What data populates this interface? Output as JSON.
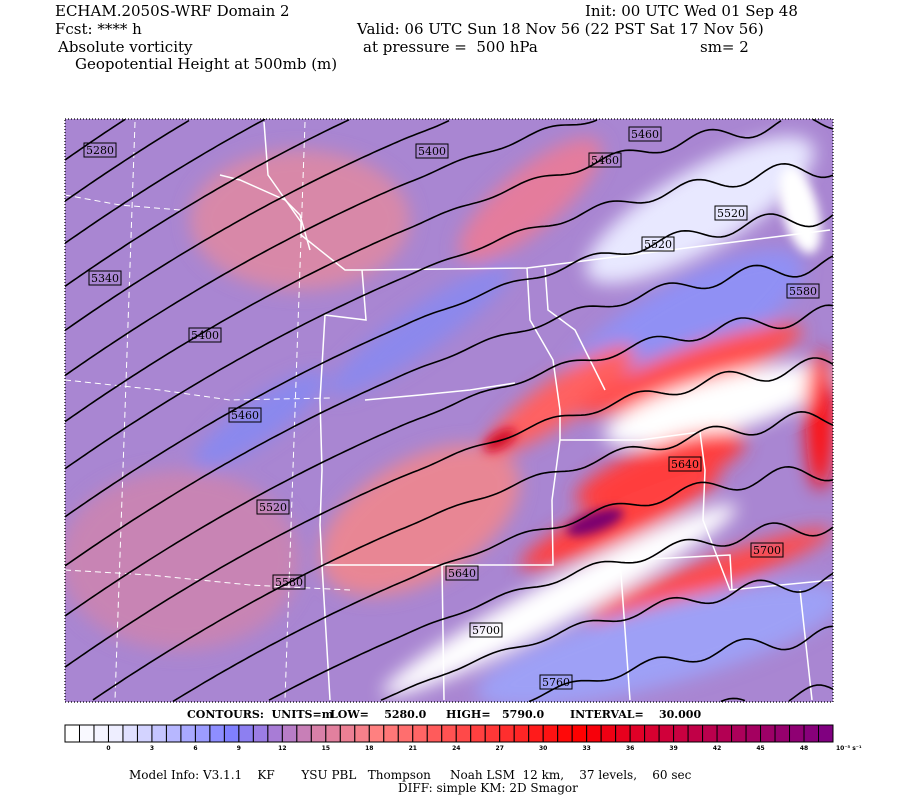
{
  "header": {
    "model": "ECHAM.2050S-WRF Domain 2",
    "init": "Init: 00 UTC Wed 01 Sep 48",
    "fcst": "Fcst: **** h",
    "valid": "Valid: 06 UTC Sun 18 Nov 56 (22 PST Sat 17 Nov 56)",
    "field": "Absolute vorticity",
    "pressure": "at pressure =  500 hPa",
    "smooth": "sm= 2",
    "contour_field": "Geopotential Height at 500mb (m)"
  },
  "contour_info": {
    "units": "CONTOURS:  UNITS=m",
    "low": "LOW=    5280.0",
    "high": "HIGH=   5790.0",
    "interval": "INTERVAL=    30.000"
  },
  "chart_data": {
    "type": "heatmap",
    "title": "Absolute vorticity",
    "overlay": "Geopotential Height at 500mb (m)",
    "contour_range": [
      5280,
      5790
    ],
    "contour_interval": 30,
    "contour_labels": [
      "5280",
      "5340",
      "5400",
      "5460",
      "5520",
      "5580",
      "5640",
      "5700",
      "5760",
      "5400",
      "5460",
      "5460",
      "5520",
      "5520",
      "5580",
      "5640",
      "5700"
    ],
    "colorbar": {
      "tick_labels": [
        "0",
        "3",
        "6",
        "9",
        "12",
        "15",
        "18",
        "21",
        "24",
        "27",
        "30",
        "33",
        "36",
        "39",
        "42",
        "45",
        "48"
      ],
      "units": "10⁻⁵ s⁻¹",
      "stops": [
        {
          "i": 0,
          "c": "#ffffff"
        },
        {
          "i": 3,
          "c": "#eeeeff"
        },
        {
          "i": 11,
          "c": "#8080ff"
        },
        {
          "i": 14,
          "c": "#a87cd6"
        },
        {
          "i": 17,
          "c": "#d880a8"
        },
        {
          "i": 21,
          "c": "#ff8080"
        },
        {
          "i": 35,
          "c": "#ff0000"
        },
        {
          "i": 41,
          "c": "#d0003a"
        },
        {
          "i": 52,
          "c": "#800080"
        }
      ]
    }
  },
  "footer": {
    "line1": "Model Info: V3.1.1    KF       YSU PBL   Thompson     Noah LSM  12 km,    37 levels,    60 sec",
    "line2": "DIFF: simple KM: 2D Smagor"
  }
}
